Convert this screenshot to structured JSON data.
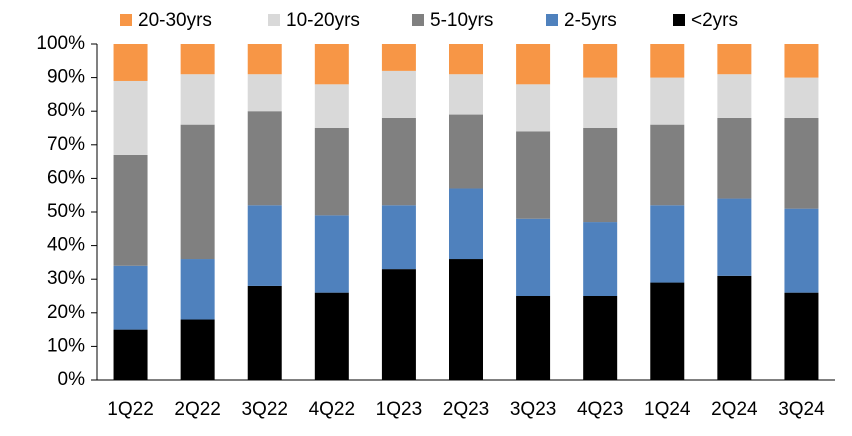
{
  "chart_data": {
    "type": "stacked-bar",
    "categories": [
      "1Q22",
      "2Q22",
      "3Q22",
      "4Q22",
      "1Q23",
      "2Q23",
      "3Q23",
      "4Q23",
      "1Q24",
      "2Q24",
      "3Q24"
    ],
    "series": [
      {
        "name": "20-30yrs",
        "color": "#f79646",
        "values": [
          11,
          9,
          9,
          12,
          8,
          9,
          12,
          10,
          10,
          9,
          10
        ]
      },
      {
        "name": "10-20yrs",
        "color": "#d9d9d9",
        "values": [
          22,
          15,
          11,
          13,
          14,
          12,
          14,
          15,
          14,
          13,
          12
        ]
      },
      {
        "name": "5-10yrs",
        "color": "#808080",
        "values": [
          33,
          40,
          28,
          26,
          26,
          22,
          26,
          28,
          24,
          24,
          27
        ]
      },
      {
        "name": "2-5yrs",
        "color": "#4f81bd",
        "values": [
          19,
          18,
          24,
          23,
          19,
          21,
          23,
          22,
          23,
          23,
          25
        ]
      },
      {
        "name": "<2yrs",
        "color": "#000000",
        "values": [
          15,
          18,
          28,
          26,
          33,
          36,
          25,
          25,
          29,
          31,
          26
        ]
      }
    ],
    "ylim": [
      0,
      100
    ],
    "yticks": [
      {
        "value": 0,
        "label": "0%"
      },
      {
        "value": 10,
        "label": "10%"
      },
      {
        "value": 20,
        "label": "20%"
      },
      {
        "value": 30,
        "label": "30%"
      },
      {
        "value": 40,
        "label": "40%"
      },
      {
        "value": 50,
        "label": "50%"
      },
      {
        "value": 60,
        "label": "60%"
      },
      {
        "value": 70,
        "label": "70%"
      },
      {
        "value": 80,
        "label": "80%"
      },
      {
        "value": 90,
        "label": "90%"
      },
      {
        "value": 100,
        "label": "100%"
      }
    ],
    "legend": "top",
    "grid": false
  }
}
